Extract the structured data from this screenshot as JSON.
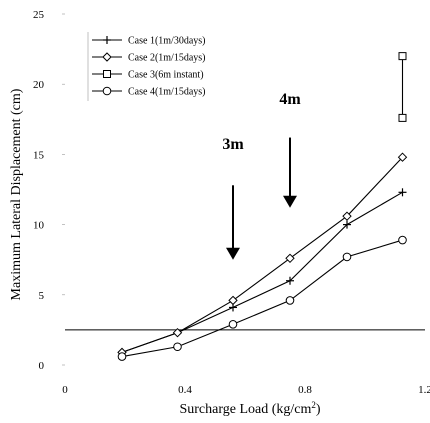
{
  "chart_data": {
    "type": "line",
    "xlabel": "Surcharge Load (kg/cm",
    "xlabel_superscript": "2",
    "xlabel_suffix": ")",
    "ylabel": "Maximum Lateral Displacement (cm)",
    "xlim": [
      0,
      1.2
    ],
    "ylim": [
      0,
      25
    ],
    "xticks": [
      "0",
      "0.4",
      "0.8",
      "1.2"
    ],
    "yticks": [
      "0",
      "5",
      "10",
      "15",
      "20",
      "25"
    ],
    "grid": false,
    "legend_position": "top-left",
    "series": [
      {
        "name": "Case 1(1m/30days)",
        "marker": "plus",
        "x": [
          0.19,
          0.375,
          0.56,
          0.75,
          0.94,
          1.125
        ],
        "y": [
          0.9,
          2.3,
          4.1,
          6.0,
          10.0,
          12.3
        ]
      },
      {
        "name": "Case 2(1m/15days)",
        "marker": "diamond",
        "x": [
          0.19,
          0.375,
          0.56,
          0.75,
          0.94,
          1.125
        ],
        "y": [
          0.9,
          2.3,
          4.6,
          7.6,
          10.6,
          14.8
        ]
      },
      {
        "name": "Case 3(6m instant)",
        "marker": "square",
        "x": [
          1.125,
          1.125
        ],
        "y": [
          17.6,
          22.0
        ]
      },
      {
        "name": "Case 4(1m/15days)",
        "marker": "circle",
        "x": [
          0.19,
          0.375,
          0.56,
          0.75,
          0.94,
          1.125
        ],
        "y": [
          0.6,
          1.3,
          2.9,
          4.6,
          7.7,
          8.9
        ]
      }
    ],
    "reference_line": {
      "y": 2.5
    },
    "annotations": [
      {
        "text": "3m",
        "x": 0.56,
        "y_text": 15.4,
        "arrow_from": 12.8,
        "arrow_to": 7.5
      },
      {
        "text": "4m",
        "x": 0.75,
        "y_text": 18.6,
        "arrow_from": 16.2,
        "arrow_to": 11.2
      }
    ]
  }
}
